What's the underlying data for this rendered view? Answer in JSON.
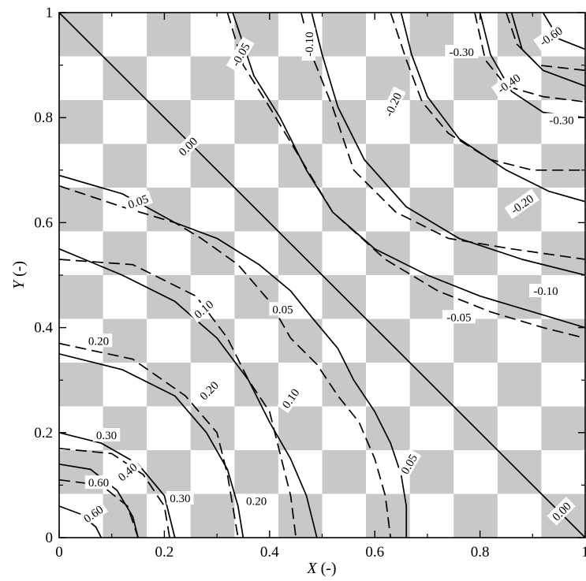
{
  "chart_data": {
    "type": "contour",
    "xlabel": {
      "var": "X",
      "unit": " (-)"
    },
    "ylabel": {
      "var": "Y",
      "unit": " (-)"
    },
    "xlim": [
      0,
      1
    ],
    "ylim": [
      0,
      1
    ],
    "x_ticks": [
      "0",
      "0.2",
      "0.4",
      "0.6",
      "0.8",
      "1"
    ],
    "y_ticks": [
      "0",
      "0.2",
      "0.4",
      "0.6",
      "0.8",
      "1"
    ],
    "background": "checkerboard",
    "checker_cells": 12,
    "colors": {
      "checker_gray": "#c8c8c8",
      "checker_white": "#ffffff",
      "line": "#000000"
    },
    "series": [
      {
        "style": "solid",
        "contours": [
          {
            "level": "0.00",
            "points": [
              [
                0,
                1
              ],
              [
                1,
                0
              ]
            ]
          },
          {
            "level": "0.05",
            "points": [
              [
                0,
                0.69
              ],
              [
                0.12,
                0.655
              ],
              [
                0.22,
                0.6
              ],
              [
                0.3,
                0.57
              ],
              [
                0.38,
                0.52
              ],
              [
                0.44,
                0.47
              ],
              [
                0.48,
                0.42
              ],
              [
                0.53,
                0.36
              ],
              [
                0.56,
                0.3
              ],
              [
                0.6,
                0.24
              ],
              [
                0.63,
                0.18
              ],
              [
                0.65,
                0.12
              ],
              [
                0.66,
                0.06
              ],
              [
                0.66,
                0
              ]
            ]
          },
          {
            "level": "-0.05",
            "points": [
              [
                0.33,
                1
              ],
              [
                0.37,
                0.88
              ],
              [
                0.42,
                0.8
              ],
              [
                0.47,
                0.7
              ],
              [
                0.52,
                0.62
              ],
              [
                0.6,
                0.55
              ],
              [
                0.7,
                0.5
              ],
              [
                0.8,
                0.46
              ],
              [
                0.9,
                0.43
              ],
              [
                1,
                0.4
              ]
            ]
          },
          {
            "level": "0.10",
            "points": [
              [
                0,
                0.55
              ],
              [
                0.12,
                0.5
              ],
              [
                0.22,
                0.45
              ],
              [
                0.3,
                0.38
              ],
              [
                0.36,
                0.3
              ],
              [
                0.4,
                0.22
              ],
              [
                0.44,
                0.15
              ],
              [
                0.47,
                0.08
              ],
              [
                0.49,
                0
              ]
            ]
          },
          {
            "level": "-0.10",
            "points": [
              [
                0.48,
                1
              ],
              [
                0.5,
                0.92
              ],
              [
                0.53,
                0.82
              ],
              [
                0.58,
                0.72
              ],
              [
                0.66,
                0.63
              ],
              [
                0.76,
                0.57
              ],
              [
                0.88,
                0.53
              ],
              [
                1,
                0.5
              ]
            ]
          },
          {
            "level": "0.20",
            "points": [
              [
                0,
                0.35
              ],
              [
                0.12,
                0.32
              ],
              [
                0.22,
                0.27
              ],
              [
                0.28,
                0.2
              ],
              [
                0.32,
                0.13
              ],
              [
                0.34,
                0.06
              ],
              [
                0.35,
                0
              ]
            ]
          },
          {
            "level": "-0.20",
            "points": [
              [
                0.65,
                1
              ],
              [
                0.67,
                0.92
              ],
              [
                0.7,
                0.84
              ],
              [
                0.76,
                0.76
              ],
              [
                0.85,
                0.7
              ],
              [
                0.93,
                0.66
              ],
              [
                1,
                0.64
              ]
            ]
          },
          {
            "level": "0.30",
            "points": [
              [
                0,
                0.2
              ],
              [
                0.08,
                0.18
              ],
              [
                0.15,
                0.14
              ],
              [
                0.2,
                0.08
              ],
              [
                0.22,
                0
              ]
            ]
          },
          {
            "level": "-0.30",
            "points": [
              [
                0.8,
                1
              ],
              [
                0.82,
                0.92
              ],
              [
                0.86,
                0.85
              ],
              [
                0.92,
                0.81
              ],
              [
                1,
                0.8
              ]
            ]
          },
          {
            "level": "0.40",
            "points": [
              [
                0,
                0.14
              ],
              [
                0.06,
                0.13
              ],
              [
                0.11,
                0.09
              ],
              [
                0.14,
                0.04
              ],
              [
                0.15,
                0
              ]
            ]
          },
          {
            "level": "-0.40",
            "points": [
              [
                0.86,
                1
              ],
              [
                0.88,
                0.93
              ],
              [
                0.92,
                0.89
              ],
              [
                1,
                0.86
              ]
            ]
          },
          {
            "level": "0.60",
            "points": [
              [
                0,
                0.06
              ],
              [
                0.04,
                0.045
              ],
              [
                0.07,
                0.02
              ],
              [
                0.08,
                0
              ]
            ]
          },
          {
            "level": "-0.60",
            "points": [
              [
                0.92,
                1
              ],
              [
                0.95,
                0.95
              ],
              [
                1,
                0.93
              ]
            ]
          }
        ]
      },
      {
        "style": "dashed",
        "contours": [
          {
            "level": "0.05",
            "points": [
              [
                0,
                0.67
              ],
              [
                0.12,
                0.63
              ],
              [
                0.22,
                0.6
              ],
              [
                0.27,
                0.57
              ],
              [
                0.34,
                0.52
              ],
              [
                0.4,
                0.45
              ],
              [
                0.44,
                0.38
              ],
              [
                0.49,
                0.33
              ],
              [
                0.53,
                0.27
              ],
              [
                0.57,
                0.22
              ],
              [
                0.6,
                0.15
              ],
              [
                0.62,
                0.08
              ],
              [
                0.63,
                0
              ]
            ]
          },
          {
            "level": "-0.05",
            "points": [
              [
                0.32,
                1
              ],
              [
                0.35,
                0.9
              ],
              [
                0.4,
                0.82
              ],
              [
                0.46,
                0.72
              ],
              [
                0.52,
                0.62
              ],
              [
                0.62,
                0.53
              ],
              [
                0.72,
                0.47
              ],
              [
                0.82,
                0.43
              ],
              [
                0.92,
                0.4
              ],
              [
                1,
                0.38
              ]
            ]
          },
          {
            "level": "0.10",
            "points": [
              [
                0,
                0.53
              ],
              [
                0.14,
                0.52
              ],
              [
                0.26,
                0.46
              ],
              [
                0.32,
                0.38
              ],
              [
                0.36,
                0.3
              ],
              [
                0.4,
                0.24
              ],
              [
                0.42,
                0.16
              ],
              [
                0.44,
                0.08
              ],
              [
                0.45,
                0
              ]
            ]
          },
          {
            "level": "-0.10",
            "points": [
              [
                0.46,
                1
              ],
              [
                0.48,
                0.92
              ],
              [
                0.52,
                0.82
              ],
              [
                0.56,
                0.7
              ],
              [
                0.64,
                0.62
              ],
              [
                0.74,
                0.57
              ],
              [
                0.86,
                0.55
              ],
              [
                1,
                0.53
              ]
            ]
          },
          {
            "level": "0.20",
            "points": [
              [
                0,
                0.37
              ],
              [
                0.14,
                0.34
              ],
              [
                0.24,
                0.27
              ],
              [
                0.3,
                0.2
              ],
              [
                0.32,
                0.12
              ],
              [
                0.33,
                0.06
              ],
              [
                0.34,
                0
              ]
            ]
          },
          {
            "level": "-0.20",
            "points": [
              [
                0.63,
                1
              ],
              [
                0.66,
                0.91
              ],
              [
                0.69,
                0.83
              ],
              [
                0.74,
                0.77
              ],
              [
                0.82,
                0.72
              ],
              [
                0.9,
                0.7
              ],
              [
                1,
                0.7
              ]
            ]
          },
          {
            "level": "0.30",
            "points": [
              [
                0,
                0.17
              ],
              [
                0.1,
                0.16
              ],
              [
                0.16,
                0.12
              ],
              [
                0.2,
                0.06
              ],
              [
                0.21,
                0
              ]
            ]
          },
          {
            "level": "-0.30",
            "points": [
              [
                0.79,
                1
              ],
              [
                0.81,
                0.91
              ],
              [
                0.85,
                0.86
              ],
              [
                0.92,
                0.84
              ],
              [
                1,
                0.83
              ]
            ]
          },
          {
            "level": "0.40",
            "points": [
              [
                0,
                0.11
              ],
              [
                0.08,
                0.1
              ],
              [
                0.13,
                0.06
              ],
              [
                0.15,
                0
              ]
            ]
          },
          {
            "level": "-0.40",
            "points": [
              [
                0.85,
                1
              ],
              [
                0.87,
                0.94
              ],
              [
                0.91,
                0.9
              ],
              [
                1,
                0.89
              ]
            ]
          }
        ]
      }
    ],
    "labels": [
      {
        "text": "0.00",
        "x": 0.245,
        "y": 0.745,
        "angle": 45
      },
      {
        "text": "0.00",
        "x": 0.955,
        "y": 0.05,
        "angle": 45
      },
      {
        "text": "0.05",
        "x": 0.15,
        "y": 0.64,
        "angle": 20
      },
      {
        "text": "0.05",
        "x": 0.425,
        "y": 0.435,
        "angle": 0
      },
      {
        "text": "0.05",
        "x": 0.665,
        "y": 0.14,
        "angle": 60
      },
      {
        "text": "-0.05",
        "x": 0.345,
        "y": 0.92,
        "angle": 60
      },
      {
        "text": "-0.05",
        "x": 0.76,
        "y": 0.42,
        "angle": 0
      },
      {
        "text": "0.10",
        "x": 0.275,
        "y": 0.435,
        "angle": 40
      },
      {
        "text": "0.10",
        "x": 0.44,
        "y": 0.265,
        "angle": 55
      },
      {
        "text": "-0.10",
        "x": 0.475,
        "y": 0.94,
        "angle": 90
      },
      {
        "text": "-0.10",
        "x": 0.925,
        "y": 0.47,
        "angle": 0
      },
      {
        "text": "0.20",
        "x": 0.075,
        "y": 0.375,
        "angle": 0
      },
      {
        "text": "0.20",
        "x": 0.285,
        "y": 0.28,
        "angle": 45
      },
      {
        "text": "0.20",
        "x": 0.375,
        "y": 0.07,
        "angle": 0
      },
      {
        "text": "-0.20",
        "x": 0.635,
        "y": 0.825,
        "angle": 65
      },
      {
        "text": "-0.20",
        "x": 0.88,
        "y": 0.635,
        "angle": 35
      },
      {
        "text": "0.30",
        "x": 0.09,
        "y": 0.195,
        "angle": 0
      },
      {
        "text": "0.30",
        "x": 0.23,
        "y": 0.075,
        "angle": 0
      },
      {
        "text": "-0.30",
        "x": 0.765,
        "y": 0.925,
        "angle": 0
      },
      {
        "text": "-0.30",
        "x": 0.955,
        "y": 0.795,
        "angle": 0
      },
      {
        "text": "0.40",
        "x": 0.13,
        "y": 0.125,
        "angle": 40
      },
      {
        "text": "-0.40",
        "x": 0.855,
        "y": 0.865,
        "angle": 35
      },
      {
        "text": "0.60",
        "x": 0.075,
        "y": 0.105,
        "angle": 0
      },
      {
        "text": "0.60",
        "x": 0.065,
        "y": 0.045,
        "angle": 35
      },
      {
        "text": "-0.60",
        "x": 0.935,
        "y": 0.955,
        "angle": 35
      }
    ]
  }
}
